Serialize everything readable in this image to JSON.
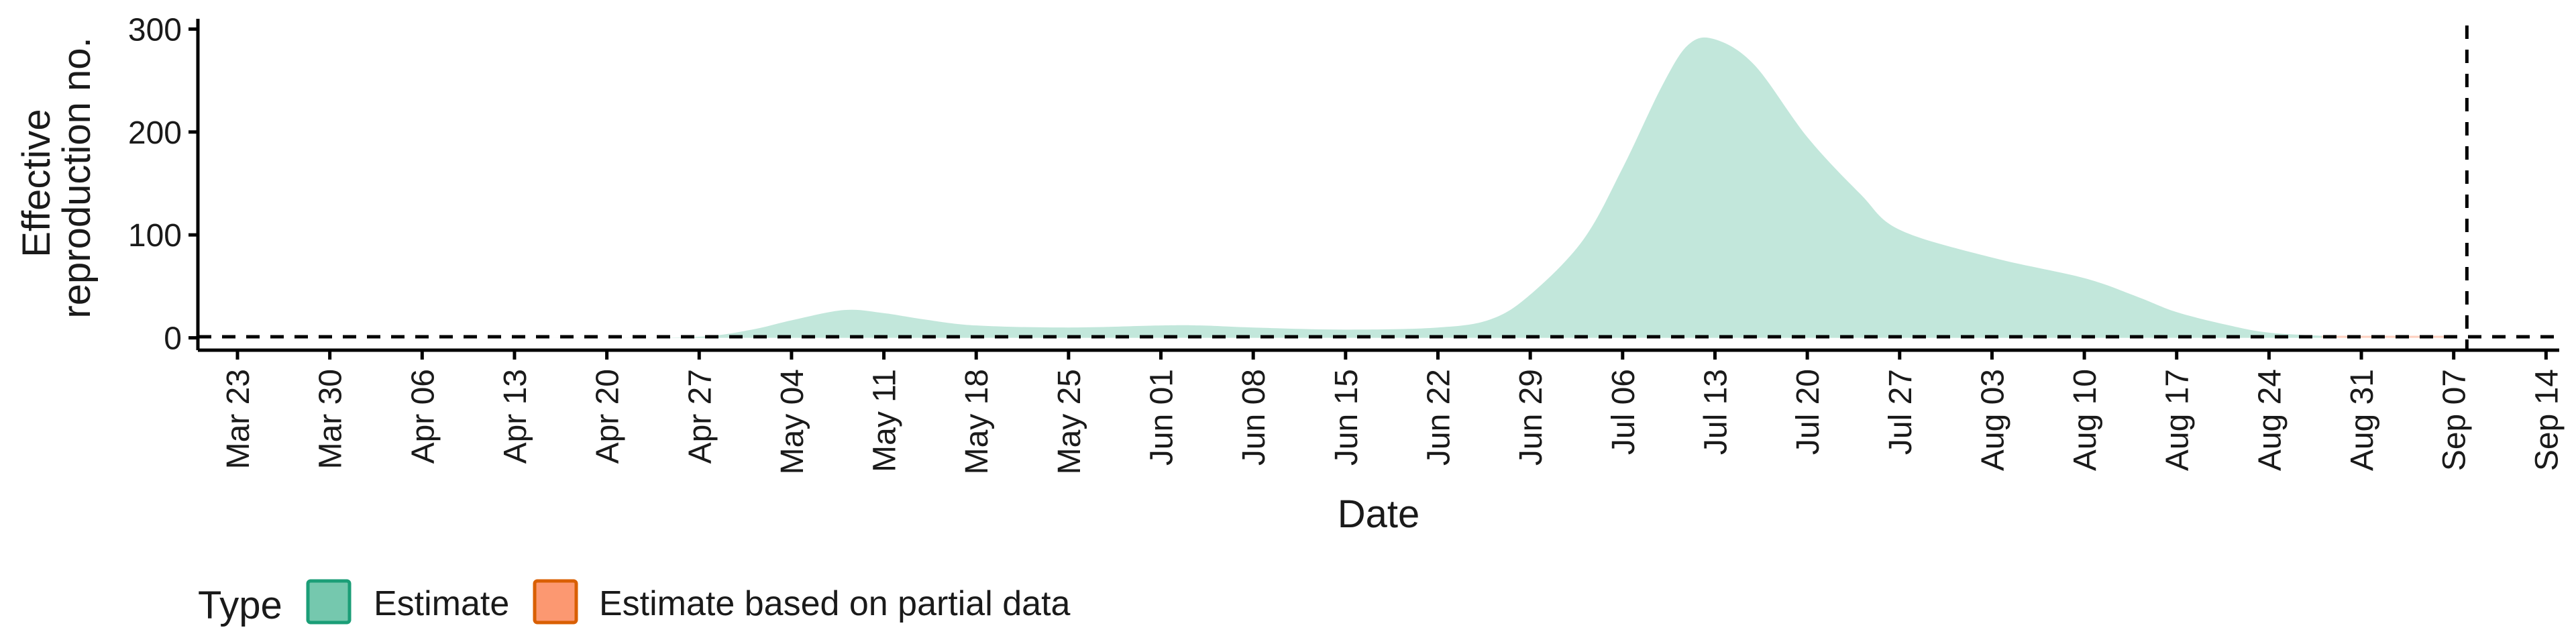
{
  "chart_data": {
    "type": "area",
    "xlabel": "Date",
    "ylabel_lines": [
      "Effective",
      "reproduction no."
    ],
    "ylim": [
      0,
      300
    ],
    "y_ticks": [
      0,
      100,
      200,
      300
    ],
    "x_tick_labels": [
      "Mar 23",
      "Mar 30",
      "Apr 06",
      "Apr 13",
      "Apr 20",
      "Apr 27",
      "May 04",
      "May 11",
      "May 18",
      "May 25",
      "Jun 01",
      "Jun 08",
      "Jun 15",
      "Jun 22",
      "Jun 29",
      "Jul 06",
      "Jul 13",
      "Jul 20",
      "Jul 27",
      "Aug 03",
      "Aug 10",
      "Aug 17",
      "Aug 24",
      "Aug 31",
      "Sep 07",
      "Sep 14"
    ],
    "reference_line_y": 1,
    "reference_line_x": "Sep 08",
    "series": [
      {
        "name": "Estimate",
        "color": "#66c2a5",
        "x": [
          "Mar 23",
          "Mar 30",
          "Apr 06",
          "Apr 13",
          "Apr 20",
          "Apr 27",
          "May 01",
          "May 04",
          "May 08",
          "May 11",
          "May 14",
          "May 18",
          "May 25",
          "Jun 01",
          "Jun 04",
          "Jun 08",
          "Jun 15",
          "Jun 22",
          "Jun 26",
          "Jun 29",
          "Jul 03",
          "Jul 06",
          "Jul 09",
          "Jul 11",
          "Jul 13",
          "Jul 16",
          "Jul 20",
          "Jul 24",
          "Jul 27",
          "Aug 03",
          "Aug 10",
          "Aug 14",
          "Aug 17",
          "Aug 21",
          "Aug 24",
          "Aug 28"
        ],
        "y": [
          0,
          0,
          0,
          0,
          0,
          1,
          8,
          17,
          27,
          24,
          18,
          12,
          10,
          12,
          12,
          10,
          8,
          10,
          18,
          42,
          95,
          165,
          245,
          285,
          290,
          265,
          195,
          140,
          105,
          78,
          58,
          40,
          25,
          12,
          5,
          2
        ]
      },
      {
        "name": "Estimate based on partial data",
        "color": "#fc8d62",
        "x": [
          "Aug 28",
          "Aug 31",
          "Sep 04",
          "Sep 07"
        ],
        "y": [
          2,
          2,
          2,
          2
        ]
      }
    ],
    "legend": {
      "title": "Type",
      "position": "bottom-left",
      "items": [
        {
          "label": "Estimate",
          "fill": "#66c2a5",
          "stroke": "#1b9e77"
        },
        {
          "label": "Estimate based on partial data",
          "fill": "#fc8d62",
          "stroke": "#d95f02"
        }
      ]
    }
  }
}
